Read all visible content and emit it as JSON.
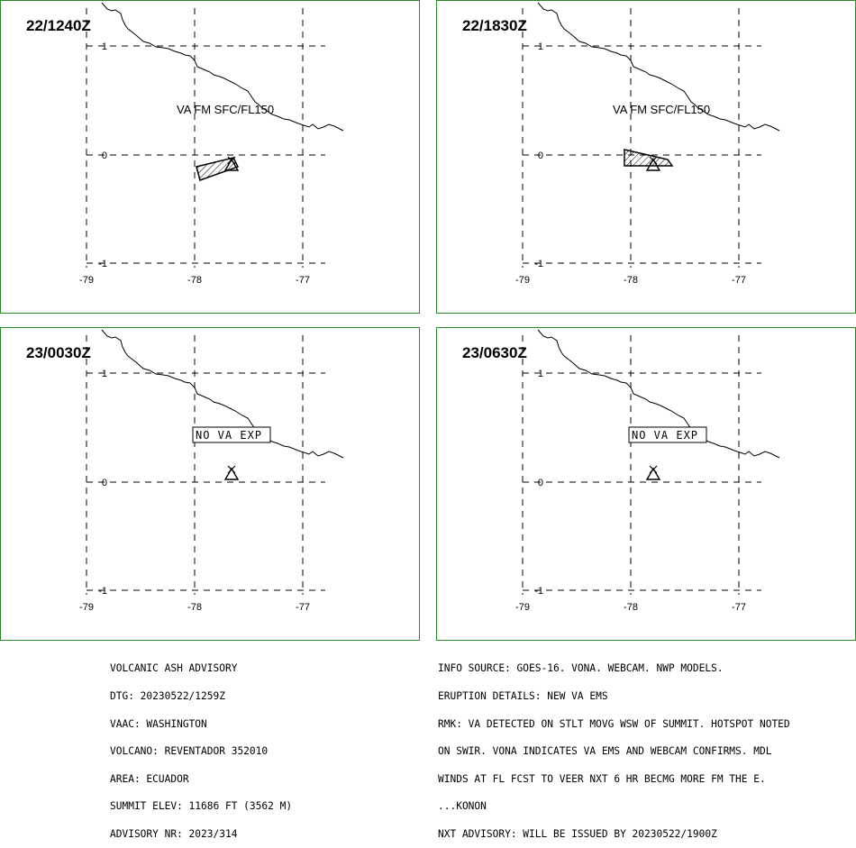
{
  "panels": [
    {
      "time": "22/1240Z",
      "label": "VA FM SFC/FL150",
      "label_type": "va",
      "polygon": "a"
    },
    {
      "time": "22/1830Z",
      "label": "VA FM SFC/FL150",
      "label_type": "va",
      "polygon": "b"
    },
    {
      "time": "23/0030Z",
      "label": "NO  VA  EXP",
      "label_type": "nova",
      "polygon": ""
    },
    {
      "time": "23/0630Z",
      "label": "NO  VA  EXP",
      "label_type": "nova",
      "polygon": ""
    }
  ],
  "lat_ticks": [
    "1",
    "0",
    "-1"
  ],
  "lon_ticks": [
    "-79",
    "-78",
    "-77"
  ],
  "advisory": {
    "left": [
      "VOLCANIC ASH ADVISORY",
      "DTG: 20230522/1259Z",
      "VAAC: WASHINGTON",
      "VOLCANO: REVENTADOR 352010",
      "AREA: ECUADOR",
      "SUMMIT ELEV: 11686 FT (3562 M)",
      "ADVISORY NR: 2023/314"
    ],
    "right": [
      "INFO SOURCE: GOES-16. VONA. WEBCAM. NWP MODELS.",
      "ERUPTION DETAILS: NEW VA EMS",
      "RMK: VA DETECTED ON STLT MOVG WSW OF SUMMIT. HOTSPOT NOTED",
      "ON SWIR. VONA INDICATES VA EMS AND WEBCAM CONFIRMS. MDL",
      "WINDS AT FL FCST TO VEER NXT 6 HR BECMG MORE FM THE E.",
      "...KONON",
      "NXT ADVISORY: WILL BE ISSUED BY 20230522/1900Z"
    ]
  },
  "colors": {
    "frame": "#2a8a2a",
    "lines": "#000000"
  }
}
